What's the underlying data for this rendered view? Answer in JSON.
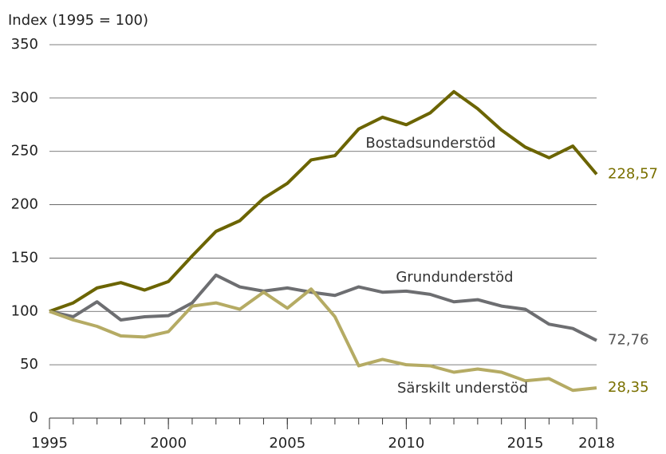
{
  "chart_data": {
    "type": "line",
    "ylabel": "Index (1995 = 100)",
    "x": [
      1995,
      1996,
      1997,
      1998,
      1999,
      2000,
      2001,
      2002,
      2003,
      2004,
      2005,
      2006,
      2007,
      2008,
      2009,
      2010,
      2011,
      2012,
      2013,
      2014,
      2015,
      2016,
      2017,
      2018
    ],
    "xlim": [
      1995,
      2018
    ],
    "xticks": [
      1995,
      2000,
      2005,
      2010,
      2015,
      2018
    ],
    "ylim": [
      0,
      350
    ],
    "yticks": [
      0,
      50,
      100,
      150,
      200,
      250,
      300,
      350
    ],
    "grid": true,
    "series": [
      {
        "name": "Bostadsunderstöd",
        "color": "#6b6400",
        "values": [
          100,
          108,
          122,
          127,
          120,
          128,
          152,
          175,
          185,
          206,
          220,
          242,
          246,
          271,
          282,
          275,
          286,
          306,
          290,
          270,
          254,
          244,
          255,
          228.57
        ],
        "value_labels": [
          null,
          null,
          null,
          null,
          null,
          null,
          null,
          null,
          null,
          null,
          null,
          null,
          null,
          null,
          null,
          null,
          null,
          null,
          null,
          null,
          null,
          null,
          null,
          "228,57"
        ]
      },
      {
        "name": "Grundunderstöd",
        "color": "#6d6e71",
        "values": [
          100,
          95,
          109,
          92,
          95,
          96,
          108,
          134,
          123,
          119,
          122,
          118,
          115,
          123,
          118,
          119,
          116,
          109,
          111,
          105,
          102,
          88,
          84,
          72.76
        ],
        "value_labels": [
          null,
          null,
          null,
          null,
          null,
          null,
          null,
          null,
          null,
          null,
          null,
          null,
          null,
          null,
          null,
          null,
          null,
          null,
          null,
          null,
          null,
          null,
          null,
          "72,76"
        ]
      },
      {
        "name": "Särskilt understöd",
        "color": "#b5ab64",
        "values": [
          100,
          92,
          86,
          77,
          76,
          81,
          105,
          108,
          102,
          118,
          103,
          121,
          95,
          49,
          55,
          50,
          49,
          43,
          46,
          43,
          35,
          37,
          26,
          28.35
        ],
        "value_labels": [
          null,
          null,
          null,
          null,
          null,
          null,
          null,
          null,
          null,
          null,
          null,
          null,
          null,
          null,
          null,
          null,
          null,
          null,
          null,
          null,
          null,
          null,
          null,
          "28,35"
        ]
      }
    ]
  }
}
